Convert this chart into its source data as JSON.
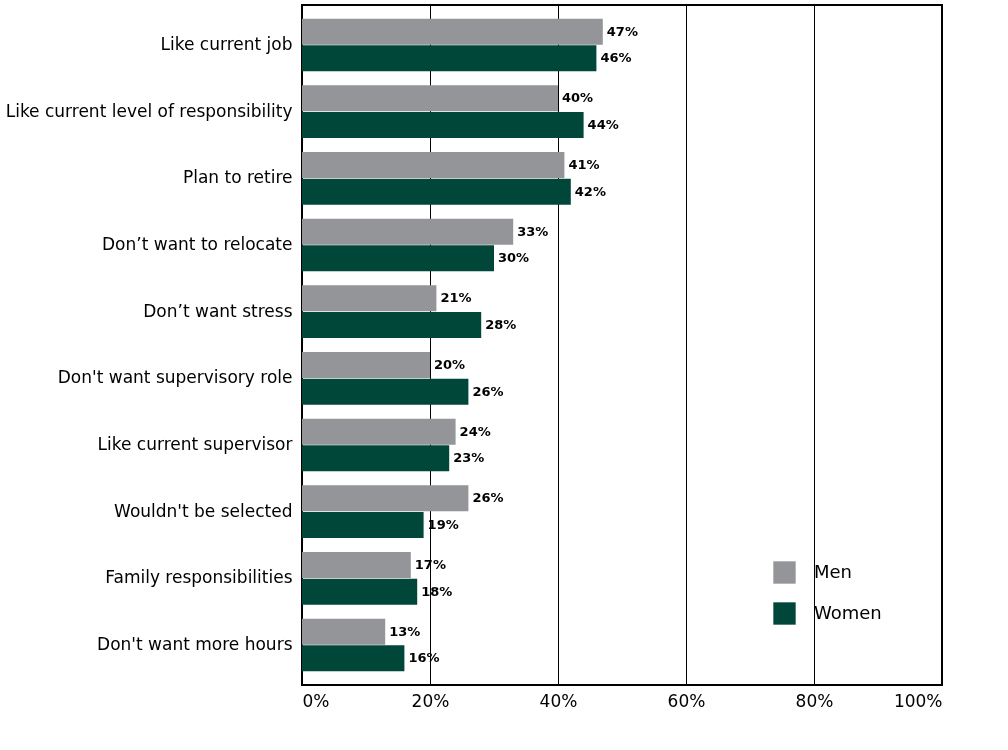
{
  "chart_data": {
    "type": "bar",
    "orientation": "horizontal",
    "categories": [
      "Like current job",
      "Like current level of responsibility",
      "Plan to retire",
      "Don’t want to relocate",
      "Don’t want stress",
      "Don't want supervisory role",
      "Like current supervisor",
      "Wouldn't be selected",
      "Family responsibilities",
      "Don't want more hours"
    ],
    "series": [
      {
        "name": "Men",
        "color": "#939598",
        "values": [
          47,
          40,
          41,
          33,
          21,
          20,
          24,
          26,
          17,
          13
        ],
        "value_labels": [
          "47%",
          "40%",
          "41%",
          "33%",
          "21%",
          "20%",
          "24%",
          "26%",
          "17%",
          "13%"
        ]
      },
      {
        "name": "Women",
        "color": "#00473a",
        "values": [
          46,
          44,
          42,
          30,
          28,
          26,
          23,
          19,
          18,
          16
        ],
        "value_labels": [
          "46%",
          "44%",
          "42%",
          "30%",
          "28%",
          "26%",
          "23%",
          "19%",
          "18%",
          "16%"
        ]
      }
    ],
    "xlim": [
      0,
      100
    ],
    "xticks": [
      {
        "value": 0,
        "label": "0%"
      },
      {
        "value": 20,
        "label": "20%"
      },
      {
        "value": 40,
        "label": "40%"
      },
      {
        "value": 60,
        "label": "60%"
      },
      {
        "value": 80,
        "label": "80%"
      },
      {
        "value": 100,
        "label": "100%"
      }
    ],
    "grid": "x",
    "legend": "bottom right"
  }
}
